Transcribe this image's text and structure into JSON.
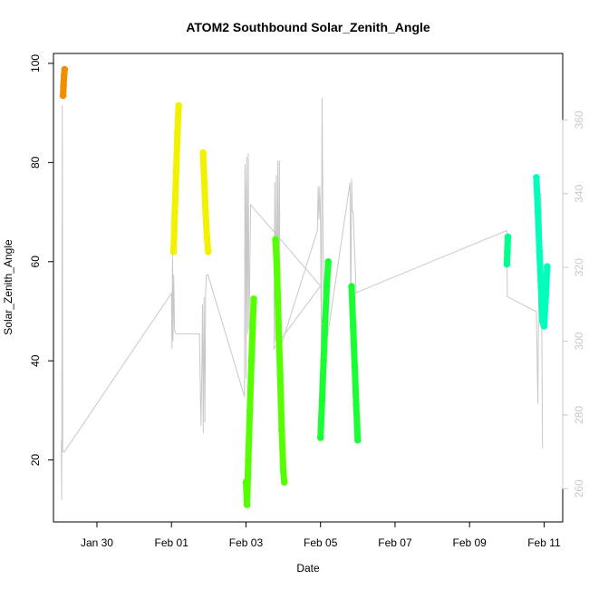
{
  "chart_data": {
    "type": "scatter",
    "title": "ATOM2 Southbound Solar_Zenith_Angle",
    "xlabel": "Date",
    "ylabel": "Solar_Zenith_Angle",
    "xlim": [
      "2016-01-28T20:00",
      "2016-02-11T12:00"
    ],
    "ylim": [
      7.5,
      102
    ],
    "ylim_right": [
      251,
      378
    ],
    "x_ticks": [
      {
        "date": "2016-01-30",
        "label": "Jan 30"
      },
      {
        "date": "2016-02-01",
        "label": "Feb 01"
      },
      {
        "date": "2016-02-03",
        "label": "Feb 03"
      },
      {
        "date": "2016-02-05",
        "label": "Feb 05"
      },
      {
        "date": "2016-02-07",
        "label": "Feb 07"
      },
      {
        "date": "2016-02-09",
        "label": "Feb 09"
      },
      {
        "date": "2016-02-11",
        "label": "Feb 11"
      }
    ],
    "y_ticks": [
      20,
      40,
      60,
      80,
      100
    ],
    "y_ticks_right": [
      260,
      280,
      300,
      320,
      340,
      360
    ],
    "grid": false,
    "legend": "none",
    "series": [
      {
        "color": "#f28c00",
        "points": [
          [
            "2016-01-29T02:10",
            93.5
          ],
          [
            "2016-01-29T02:30",
            95.5
          ],
          [
            "2016-01-29T02:50",
            97.5
          ],
          [
            "2016-01-29T03:10",
            98.8
          ]
        ]
      },
      {
        "color": "#f2f200",
        "points": [
          [
            "2016-02-01T01:20",
            62
          ],
          [
            "2016-02-01T02:10",
            70
          ],
          [
            "2016-02-01T03:00",
            78
          ],
          [
            "2016-02-01T03:50",
            86
          ],
          [
            "2016-02-01T04:40",
            91.5
          ]
        ]
      },
      {
        "color": "#f2f200",
        "points": [
          [
            "2016-02-01T20:20",
            82
          ],
          [
            "2016-02-01T21:10",
            76
          ],
          [
            "2016-02-01T22:00",
            70
          ],
          [
            "2016-02-01T22:50",
            65
          ],
          [
            "2016-02-01T23:40",
            62
          ]
        ]
      },
      {
        "color": "#55ff00",
        "points": [
          [
            "2016-02-03T00:00",
            15.5
          ],
          [
            "2016-02-03T00:40",
            11
          ],
          [
            "2016-02-03T01:30",
            20
          ],
          [
            "2016-02-03T02:30",
            30
          ],
          [
            "2016-02-03T03:30",
            40
          ],
          [
            "2016-02-03T04:20",
            47
          ],
          [
            "2016-02-03T05:00",
            52.5
          ]
        ]
      },
      {
        "color": "#55ff00",
        "points": [
          [
            "2016-02-03T19:00",
            64.5
          ],
          [
            "2016-02-03T20:00",
            58
          ],
          [
            "2016-02-03T21:00",
            47
          ],
          [
            "2016-02-03T22:00",
            37
          ],
          [
            "2016-02-03T23:00",
            26
          ],
          [
            "2016-02-04T00:00",
            18
          ],
          [
            "2016-02-04T00:40",
            15.5
          ]
        ]
      },
      {
        "color": "#1aff33",
        "points": [
          [
            "2016-02-05T00:00",
            24.5
          ],
          [
            "2016-02-05T01:00",
            32
          ],
          [
            "2016-02-05T02:00",
            40
          ],
          [
            "2016-02-05T03:00",
            48
          ],
          [
            "2016-02-05T04:00",
            55
          ],
          [
            "2016-02-05T05:00",
            60
          ]
        ]
      },
      {
        "color": "#1aff33",
        "points": [
          [
            "2016-02-05T20:00",
            55
          ],
          [
            "2016-02-05T21:00",
            47
          ],
          [
            "2016-02-05T22:00",
            39
          ],
          [
            "2016-02-05T23:00",
            31
          ],
          [
            "2016-02-06T00:00",
            24
          ]
        ]
      },
      {
        "color": "#00ff8c",
        "points": [
          [
            "2016-02-10T00:00",
            59.5
          ],
          [
            "2016-02-10T00:20",
            62
          ],
          [
            "2016-02-10T00:40",
            65
          ]
        ]
      },
      {
        "color": "#00ffbb",
        "points": [
          [
            "2016-02-10T19:00",
            77
          ],
          [
            "2016-02-10T20:00",
            70
          ],
          [
            "2016-02-10T21:00",
            62
          ],
          [
            "2016-02-10T22:00",
            55
          ],
          [
            "2016-02-10T23:00",
            48
          ],
          [
            "2016-02-11T00:00",
            47
          ],
          [
            "2016-02-11T01:00",
            53
          ],
          [
            "2016-02-11T02:00",
            59
          ]
        ]
      }
    ],
    "secondary_trace": {
      "color": "#c8c8c8",
      "points": [
        [
          "2016-01-29T01:00",
          273
        ],
        [
          "2016-01-29T01:20",
          257
        ],
        [
          "2016-01-29T01:40",
          364
        ],
        [
          "2016-01-29T02:00",
          270
        ],
        [
          "2016-01-29T03:00",
          270
        ],
        [
          "2016-02-01T00:00",
          313
        ],
        [
          "2016-02-01T00:20",
          298
        ],
        [
          "2016-02-01T00:40",
          325
        ],
        [
          "2016-02-01T01:00",
          300
        ],
        [
          "2016-02-01T01:30",
          318
        ],
        [
          "2016-02-01T02:00",
          303
        ],
        [
          "2016-02-01T03:00",
          302
        ],
        [
          "2016-02-01T18:00",
          302
        ],
        [
          "2016-02-01T19:00",
          277
        ],
        [
          "2016-02-01T19:30",
          290
        ],
        [
          "2016-02-01T20:00",
          310
        ],
        [
          "2016-02-01T20:30",
          275
        ],
        [
          "2016-02-01T21:00",
          312
        ],
        [
          "2016-02-01T21:30",
          278
        ],
        [
          "2016-02-01T22:00",
          313
        ],
        [
          "2016-02-01T22:30",
          318
        ],
        [
          "2016-02-01T23:30",
          318
        ],
        [
          "2016-02-02T23:00",
          285
        ],
        [
          "2016-02-02T23:20",
          348
        ],
        [
          "2016-02-02T23:40",
          340
        ],
        [
          "2016-02-03T00:00",
          290
        ],
        [
          "2016-02-03T00:30",
          350
        ],
        [
          "2016-02-03T01:00",
          302
        ],
        [
          "2016-02-03T01:30",
          351
        ],
        [
          "2016-02-03T02:00",
          303
        ],
        [
          "2016-02-03T03:00",
          337
        ],
        [
          "2016-02-05T00:00",
          315
        ],
        [
          "2016-02-03T18:00",
          298
        ],
        [
          "2016-02-03T18:30",
          343
        ],
        [
          "2016-02-03T19:00",
          300
        ],
        [
          "2016-02-03T19:30",
          345
        ],
        [
          "2016-02-03T20:00",
          302
        ],
        [
          "2016-02-03T20:30",
          349
        ],
        [
          "2016-02-03T21:00",
          303
        ],
        [
          "2016-02-03T21:30",
          349
        ],
        [
          "2016-02-03T22:00",
          298
        ],
        [
          "2016-02-04T22:00",
          330
        ],
        [
          "2016-02-04T22:30",
          342
        ],
        [
          "2016-02-04T23:00",
          333
        ],
        [
          "2016-02-04T23:30",
          342
        ],
        [
          "2016-02-05T00:00",
          333
        ],
        [
          "2016-02-05T00:30",
          298
        ],
        [
          "2016-02-05T01:00",
          366
        ],
        [
          "2016-02-05T02:00",
          310
        ],
        [
          "2016-02-05T03:00",
          300
        ],
        [
          "2016-02-05T04:00",
          300
        ],
        [
          "2016-02-05T19:00",
          343
        ],
        [
          "2016-02-05T19:30",
          305
        ],
        [
          "2016-02-05T20:00",
          344
        ],
        [
          "2016-02-05T20:30",
          335
        ],
        [
          "2016-02-05T21:00",
          335
        ],
        [
          "2016-02-05T23:00",
          313
        ],
        [
          "2016-02-05T22:00",
          313
        ],
        [
          "2016-02-10T00:00",
          330
        ],
        [
          "2016-02-10T00:20",
          312
        ],
        [
          "2016-02-10T00:40",
          312
        ],
        [
          "2016-02-10T19:00",
          308
        ],
        [
          "2016-02-10T20:00",
          283
        ],
        [
          "2016-02-10T21:00",
          340
        ],
        [
          "2016-02-10T22:00",
          340
        ],
        [
          "2016-02-10T23:00",
          271
        ]
      ]
    }
  }
}
